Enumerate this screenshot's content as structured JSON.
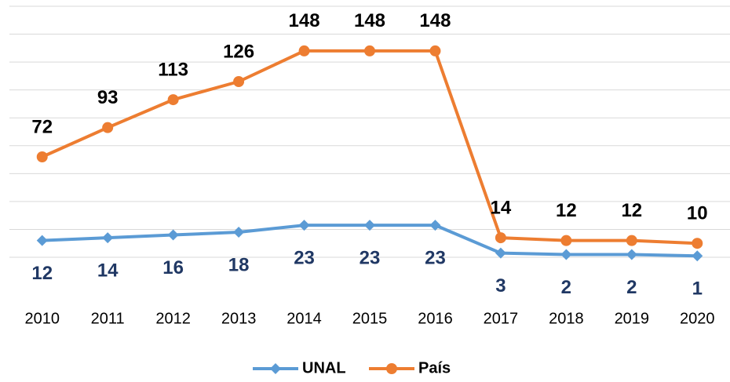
{
  "chart_data": {
    "type": "line",
    "categories": [
      "2010",
      "2011",
      "2012",
      "2013",
      "2014",
      "2015",
      "2016",
      "2017",
      "2018",
      "2019",
      "2020"
    ],
    "series": [
      {
        "name": "UNAL",
        "color": "#5b9bd5",
        "label_color": "#203864",
        "marker": "diamond",
        "values": [
          12,
          14,
          16,
          18,
          23,
          23,
          23,
          3,
          2,
          2,
          1
        ]
      },
      {
        "name": "País",
        "color": "#ed7d31",
        "label_color": "#000000",
        "marker": "circle",
        "values": [
          72,
          93,
          113,
          126,
          148,
          148,
          148,
          14,
          12,
          12,
          10
        ]
      }
    ],
    "ylim": [
      0,
      180
    ],
    "yticks": [
      0,
      20,
      40,
      60,
      80,
      100,
      120,
      140,
      160,
      180
    ],
    "grid": true,
    "legend": "bottom"
  }
}
